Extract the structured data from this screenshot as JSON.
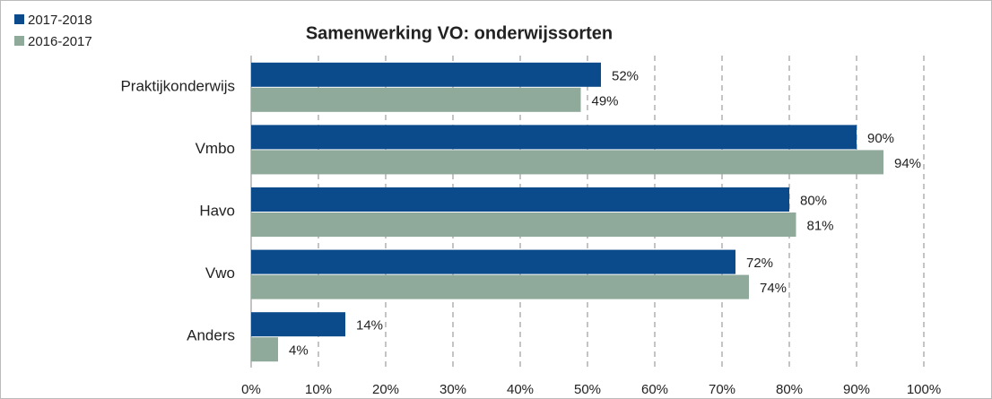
{
  "chart_data": {
    "type": "bar",
    "orientation": "horizontal",
    "title": "Samenwerking VO: onderwijssorten",
    "categories": [
      "Praktijkonderwijs",
      "Vmbo",
      "Havo",
      "Vwo",
      "Anders"
    ],
    "series": [
      {
        "name": "2017-2018",
        "color": "#0b4a8b",
        "values": [
          52,
          90,
          80,
          72,
          14
        ],
        "value_labels": [
          "52%",
          "90%",
          "80%",
          "72%",
          "14%"
        ]
      },
      {
        "name": "2016-2017",
        "color": "#8fa99b",
        "values": [
          49,
          94,
          81,
          74,
          4
        ],
        "value_labels": [
          "49%",
          "94%",
          "81%",
          "74%",
          "4%"
        ]
      }
    ],
    "xlim": [
      0,
      100
    ],
    "xticks": [
      {
        "value": 0,
        "label": "0%"
      },
      {
        "value": 10,
        "label": "10%"
      },
      {
        "value": 20,
        "label": "20%"
      },
      {
        "value": 30,
        "label": "30%"
      },
      {
        "value": 40,
        "label": "40%"
      },
      {
        "value": 50,
        "label": "50%"
      },
      {
        "value": 60,
        "label": "60%"
      },
      {
        "value": 70,
        "label": "70%"
      },
      {
        "value": 80,
        "label": "80%"
      },
      {
        "value": 90,
        "label": "90%"
      },
      {
        "value": 100,
        "label": "100%"
      }
    ],
    "grid": true,
    "legend": "top-left"
  }
}
